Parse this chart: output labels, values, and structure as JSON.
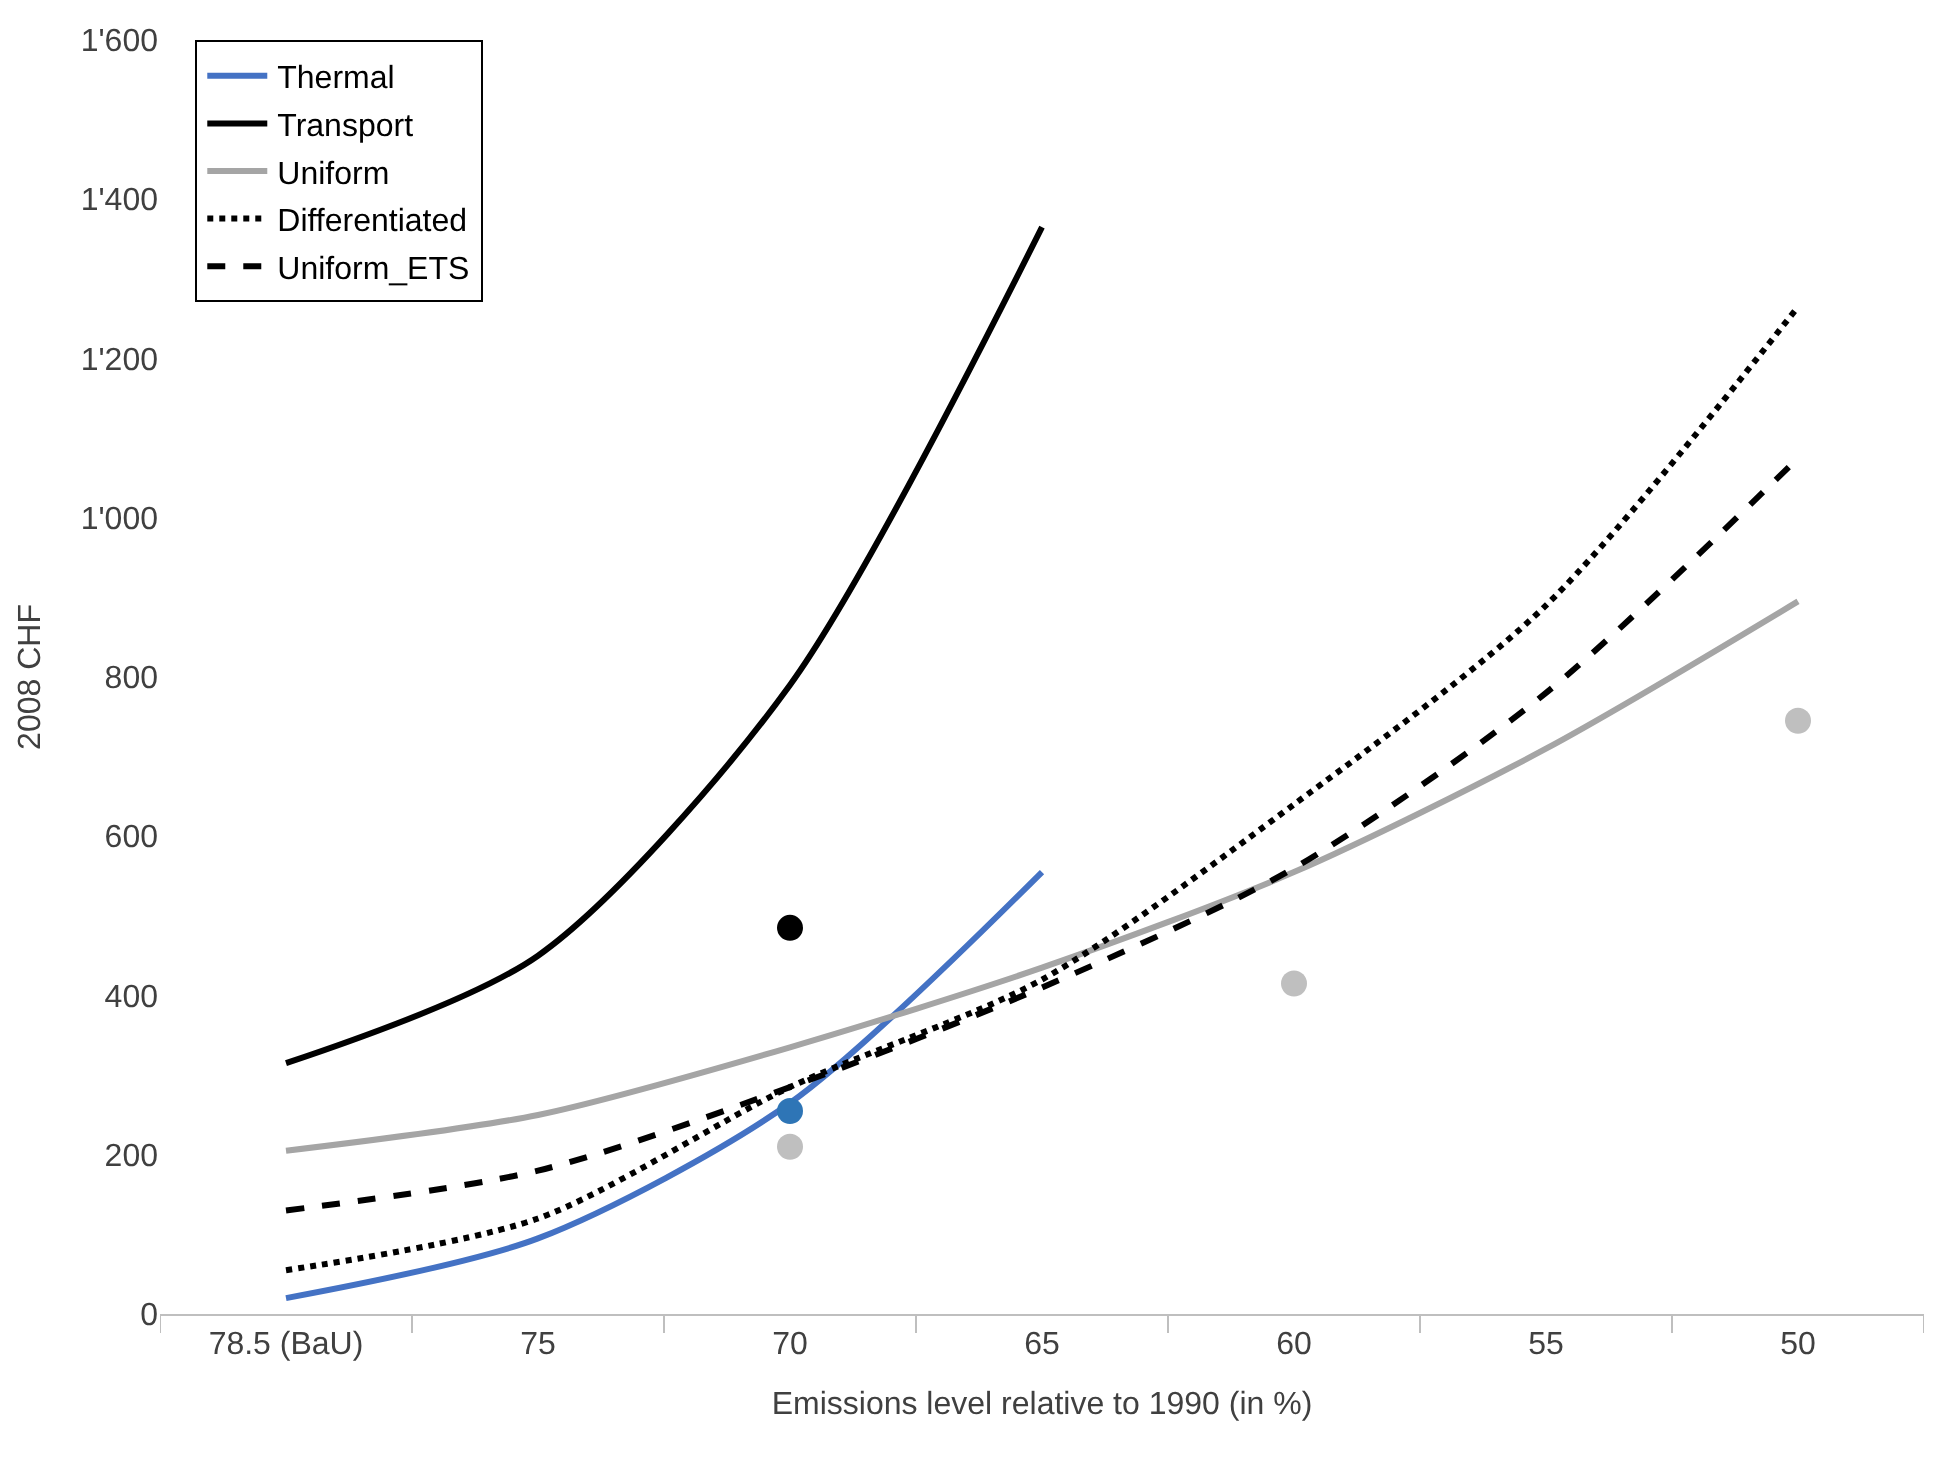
{
  "chart_data": {
    "type": "line",
    "xlabel": "Emissions level relative to 1990 (in %)",
    "ylabel": "2008 CHF",
    "categories": [
      "78.5 (BaU)",
      "75",
      "70",
      "65",
      "60",
      "55",
      "50"
    ],
    "ylim": [
      0,
      1600
    ],
    "yticks": [
      0,
      200,
      400,
      600,
      800,
      {
        "value": 1000,
        "label": "1'000"
      },
      {
        "value": 1200,
        "label": "1'200"
      },
      {
        "value": 1400,
        "label": "1'400"
      },
      {
        "value": 1600,
        "label": "1'600"
      }
    ],
    "grid": false,
    "legend": "top left",
    "marker": "none",
    "series": [
      {
        "name": "Thermal",
        "color": "#4472c4",
        "line_style": "solid",
        "values": [
          20,
          95,
          265,
          555,
          null,
          null,
          null
        ]
      },
      {
        "name": "Transport",
        "color": "#000000",
        "line_style": "solid",
        "values": [
          315,
          450,
          790,
          1365,
          null,
          null,
          null
        ]
      },
      {
        "name": "Uniform",
        "color": "#a5a5a5",
        "line_style": "solid",
        "values": [
          205,
          250,
          335,
          435,
          555,
          710,
          895
        ]
      },
      {
        "name": "Differentiated",
        "color": "#000000",
        "line_style": "dotted",
        "values": [
          55,
          120,
          285,
          420,
          640,
          890,
          1265
        ]
      },
      {
        "name": "Uniform_ETS",
        "color": "#000000",
        "line_style": "dashed",
        "values": [
          130,
          180,
          285,
          410,
          560,
          780,
          1075
        ]
      },
      {
        "type": "scatter",
        "marker": "circle",
        "color": "#000000",
        "x": [
          "70"
        ],
        "values": [
          485
        ]
      },
      {
        "type": "scatter",
        "marker": "circle",
        "color": "#2e75b6",
        "x": [
          "70"
        ],
        "values": [
          255
        ]
      },
      {
        "type": "scatter",
        "marker": "circle",
        "color": "#bfbfbf",
        "x": [
          "70",
          "60",
          "50"
        ],
        "values": [
          210,
          415,
          745
        ]
      }
    ]
  }
}
